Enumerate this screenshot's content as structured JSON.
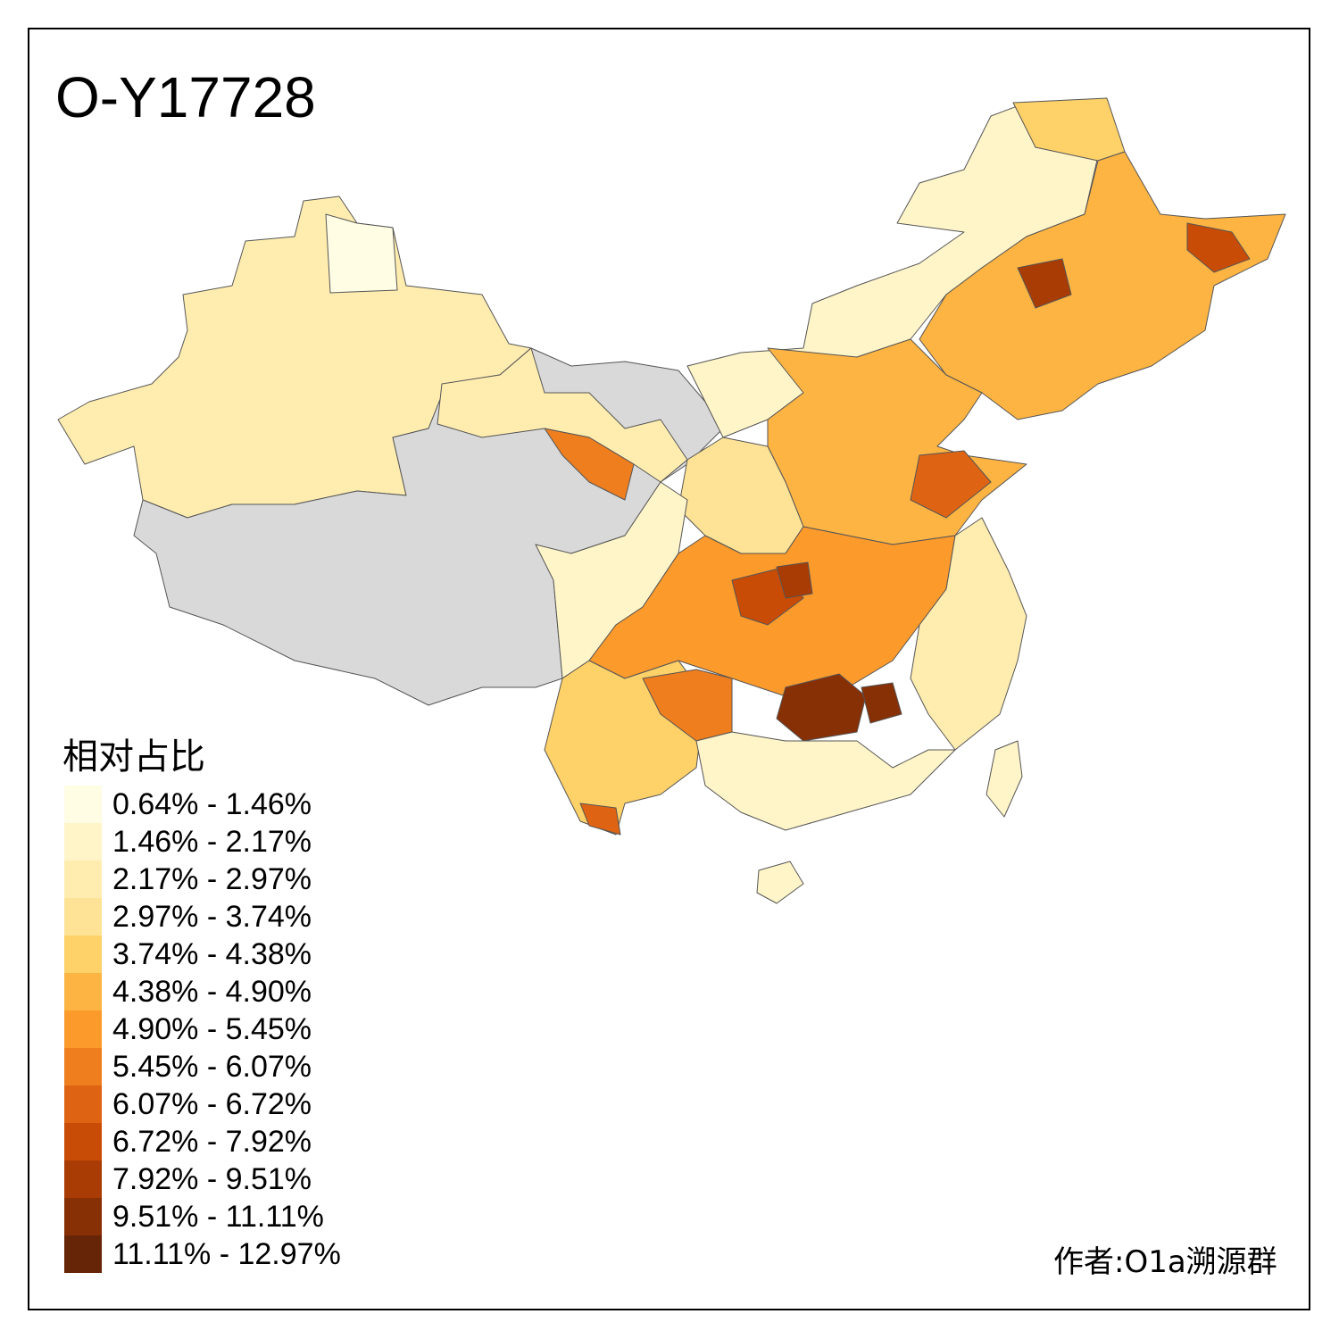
{
  "title": "O-Y17728",
  "legend": {
    "title": "相对占比",
    "items": [
      {
        "label": "0.64% - 1.46%",
        "color": "#FFFDE4"
      },
      {
        "label": "1.46% - 2.17%",
        "color": "#FFF5C9"
      },
      {
        "label": "2.17% - 2.97%",
        "color": "#FFEDB0"
      },
      {
        "label": "2.97% - 3.74%",
        "color": "#FEE396"
      },
      {
        "label": "3.74% - 4.38%",
        "color": "#FED169"
      },
      {
        "label": "4.38% - 4.90%",
        "color": "#FDB443"
      },
      {
        "label": "4.90% - 5.45%",
        "color": "#FC9A2C"
      },
      {
        "label": "5.45% - 6.07%",
        "color": "#EF7E1F"
      },
      {
        "label": "6.07% - 6.72%",
        "color": "#DE6414"
      },
      {
        "label": "6.72% - 7.92%",
        "color": "#C94C06"
      },
      {
        "label": "7.92% - 9.51%",
        "color": "#A93C04"
      },
      {
        "label": "9.51% - 11.11%",
        "color": "#872F05"
      },
      {
        "label": "11.11% - 12.97%",
        "color": "#662506"
      }
    ],
    "no_data_color": "#D9D9D9"
  },
  "author": "作者:O1a溯源群"
}
